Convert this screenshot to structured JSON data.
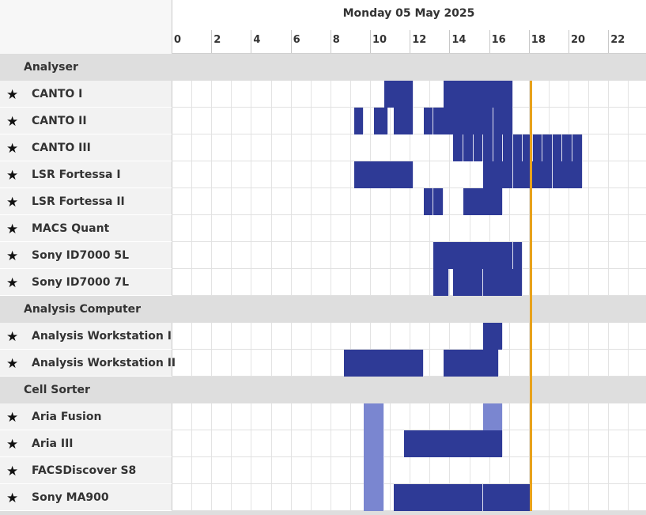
{
  "header": {
    "date": "Monday 05 May 2025",
    "hour_labels": [
      "0",
      "2",
      "4",
      "6",
      "8",
      "10",
      "12",
      "14",
      "16",
      "18",
      "20",
      "22"
    ]
  },
  "colors": {
    "booking": "#2e3a96",
    "booking_light": "#7a86d0",
    "now_line": "#e8a21c"
  },
  "current_hour": 18.1,
  "groups": [
    {
      "name": "Analyser",
      "resources": [
        {
          "name": "CANTO I",
          "bookings": [
            [
              10.7,
              12.2
            ],
            [
              13.7,
              17.2
            ]
          ]
        },
        {
          "name": "CANTO II",
          "bookings": [
            [
              9.2,
              9.7
            ],
            [
              10.2,
              10.9
            ],
            [
              11.2,
              12.2
            ],
            [
              12.7,
              13.2
            ],
            [
              13.2,
              16.2
            ],
            [
              16.2,
              17.2
            ]
          ]
        },
        {
          "name": "CANTO III",
          "bookings": [
            [
              14.2,
              14.7
            ],
            [
              14.7,
              15.2
            ],
            [
              15.2,
              15.7
            ],
            [
              15.7,
              16.2
            ],
            [
              16.2,
              16.7
            ],
            [
              16.7,
              17.2
            ],
            [
              17.2,
              17.7
            ],
            [
              17.7,
              18.2
            ],
            [
              18.2,
              18.7
            ],
            [
              18.7,
              19.2
            ],
            [
              19.2,
              19.7
            ],
            [
              19.7,
              20.2
            ],
            [
              20.2,
              20.7
            ]
          ]
        },
        {
          "name": "LSR Fortessa I",
          "bookings": [
            [
              9.2,
              12.2
            ],
            [
              15.7,
              17.2
            ],
            [
              17.2,
              19.2
            ],
            [
              19.2,
              20.7
            ]
          ]
        },
        {
          "name": "LSR Fortessa II",
          "bookings": [
            [
              12.7,
              13.2
            ],
            [
              13.2,
              13.7
            ],
            [
              14.7,
              16.7
            ]
          ]
        },
        {
          "name": "MACS Quant",
          "bookings": []
        },
        {
          "name": "Sony ID7000 5L",
          "bookings": [
            [
              13.2,
              17.2
            ],
            [
              17.2,
              17.7
            ]
          ]
        },
        {
          "name": "Sony ID7000 7L",
          "bookings": [
            [
              13.2,
              14.0
            ],
            [
              14.2,
              15.7
            ],
            [
              15.7,
              17.7
            ]
          ]
        }
      ]
    },
    {
      "name": "Analysis Computer",
      "resources": [
        {
          "name": "Analysis Workstation I",
          "bookings": [
            [
              15.7,
              16.7
            ]
          ]
        },
        {
          "name": "Analysis Workstation II",
          "bookings": [
            [
              8.7,
              12.7
            ],
            [
              13.7,
              16.5
            ]
          ]
        }
      ]
    },
    {
      "name": "Cell Sorter",
      "resources": [
        {
          "name": "Aria Fusion",
          "bookings": [
            [
              9.7,
              10.7,
              "light"
            ],
            [
              15.7,
              16.7,
              "light"
            ]
          ]
        },
        {
          "name": "Aria III",
          "bookings": [
            [
              9.7,
              10.7,
              "light"
            ],
            [
              11.7,
              16.7
            ]
          ]
        },
        {
          "name": "FACSDiscover S8",
          "bookings": [
            [
              9.7,
              10.7,
              "light"
            ]
          ]
        },
        {
          "name": "Sony MA900",
          "bookings": [
            [
              9.7,
              10.7,
              "light"
            ],
            [
              11.2,
              15.7
            ],
            [
              15.7,
              18.1
            ]
          ]
        }
      ]
    }
  ]
}
